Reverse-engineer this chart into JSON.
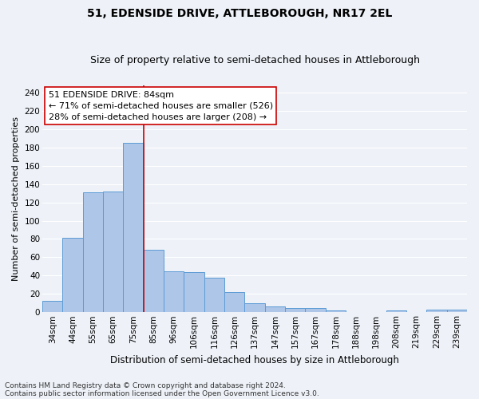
{
  "title": "51, EDENSIDE DRIVE, ATTLEBOROUGH, NR17 2EL",
  "subtitle": "Size of property relative to semi-detached houses in Attleborough",
  "xlabel": "Distribution of semi-detached houses by size in Attleborough",
  "ylabel": "Number of semi-detached properties",
  "categories": [
    "34sqm",
    "44sqm",
    "55sqm",
    "65sqm",
    "75sqm",
    "85sqm",
    "96sqm",
    "106sqm",
    "116sqm",
    "126sqm",
    "137sqm",
    "147sqm",
    "157sqm",
    "167sqm",
    "178sqm",
    "188sqm",
    "198sqm",
    "208sqm",
    "219sqm",
    "229sqm",
    "239sqm"
  ],
  "values": [
    12,
    81,
    131,
    132,
    185,
    68,
    45,
    44,
    38,
    22,
    10,
    6,
    5,
    5,
    2,
    0,
    0,
    2,
    0,
    3,
    3
  ],
  "bar_color": "#aec6e8",
  "bar_edge_color": "#5b9bd5",
  "vline_index": 5,
  "annotation_text_line1": "51 EDENSIDE DRIVE: 84sqm",
  "annotation_text_line2": "← 71% of semi-detached houses are smaller (526)",
  "annotation_text_line3": "28% of semi-detached houses are larger (208) →",
  "annotation_box_color": "#ffffff",
  "annotation_box_edge_color": "#cc0000",
  "vline_color": "#cc0000",
  "ylim": [
    0,
    248
  ],
  "yticks": [
    0,
    20,
    40,
    60,
    80,
    100,
    120,
    140,
    160,
    180,
    200,
    220,
    240
  ],
  "footnote1": "Contains HM Land Registry data © Crown copyright and database right 2024.",
  "footnote2": "Contains public sector information licensed under the Open Government Licence v3.0.",
  "background_color": "#eef2f8",
  "grid_color": "#ffffff",
  "title_fontsize": 10,
  "subtitle_fontsize": 9,
  "xlabel_fontsize": 8.5,
  "ylabel_fontsize": 8,
  "tick_fontsize": 7.5,
  "annotation_fontsize": 8,
  "footnote_fontsize": 6.5
}
